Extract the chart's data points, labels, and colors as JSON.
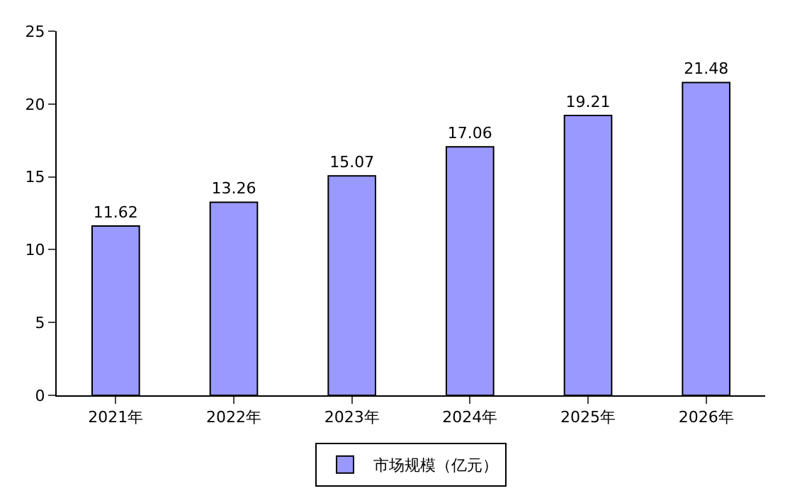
{
  "chart_data": {
    "type": "bar",
    "categories": [
      "2021年",
      "2022年",
      "2023年",
      "2024年",
      "2025年",
      "2026年"
    ],
    "series": [
      {
        "name": "市场规模（亿元）",
        "color": "#9999ff",
        "values": [
          11.62,
          13.26,
          15.07,
          17.06,
          19.21,
          21.48
        ]
      }
    ],
    "ylim": [
      0,
      25
    ],
    "yticks": [
      0,
      5,
      10,
      15,
      20,
      25
    ],
    "data_labels": true,
    "legend": "bottom"
  }
}
